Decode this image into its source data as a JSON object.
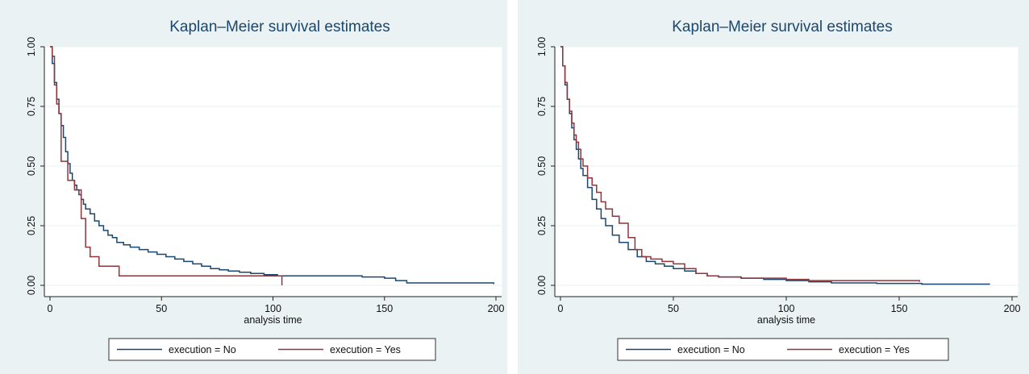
{
  "chart_data": [
    {
      "type": "line",
      "title": "Kaplan–Meier survival estimates",
      "xlabel": "analysis time",
      "ylabel": "",
      "xlim": [
        0,
        200
      ],
      "ylim": [
        0,
        1
      ],
      "xticks": [
        "0",
        "50",
        "100",
        "150",
        "200"
      ],
      "yticks": [
        "0.00",
        "0.25",
        "0.50",
        "0.75",
        "1.00"
      ],
      "grid": true,
      "legend_position": "bottom",
      "step": true,
      "series": [
        {
          "name": "execution = No",
          "color": "#1a476f",
          "x": [
            0,
            1,
            2,
            3,
            4,
            5,
            6,
            7,
            8,
            9,
            10,
            11,
            12,
            13,
            14,
            15,
            16,
            18,
            20,
            22,
            24,
            26,
            28,
            30,
            33,
            36,
            40,
            44,
            48,
            52,
            56,
            60,
            64,
            68,
            72,
            76,
            80,
            85,
            90,
            96,
            102,
            110,
            120,
            130,
            140,
            150,
            155,
            160,
            170,
            180,
            190,
            199
          ],
          "y": [
            1.0,
            0.93,
            0.85,
            0.78,
            0.72,
            0.67,
            0.62,
            0.56,
            0.51,
            0.47,
            0.44,
            0.42,
            0.4,
            0.38,
            0.36,
            0.34,
            0.32,
            0.3,
            0.27,
            0.25,
            0.23,
            0.21,
            0.2,
            0.18,
            0.17,
            0.16,
            0.15,
            0.14,
            0.13,
            0.12,
            0.11,
            0.1,
            0.09,
            0.08,
            0.07,
            0.065,
            0.06,
            0.055,
            0.05,
            0.045,
            0.04,
            0.04,
            0.04,
            0.04,
            0.035,
            0.03,
            0.02,
            0.01,
            0.01,
            0.01,
            0.01,
            0.005
          ]
        },
        {
          "name": "execution = Yes",
          "color": "#90353b",
          "x": [
            0,
            1,
            2,
            3,
            4,
            5,
            8,
            11,
            14,
            16,
            18,
            22,
            31,
            50,
            80,
            104
          ],
          "y": [
            1.0,
            0.96,
            0.84,
            0.76,
            0.72,
            0.52,
            0.44,
            0.4,
            0.28,
            0.16,
            0.12,
            0.08,
            0.04,
            0.04,
            0.04,
            0.0
          ]
        }
      ]
    },
    {
      "type": "line",
      "title": "Kaplan–Meier survival estimates",
      "xlabel": "analysis time",
      "ylabel": "",
      "xlim": [
        0,
        200
      ],
      "ylim": [
        0,
        1
      ],
      "xticks": [
        "0",
        "50",
        "100",
        "150",
        "200"
      ],
      "yticks": [
        "0.00",
        "0.25",
        "0.50",
        "0.75",
        "1.00"
      ],
      "grid": true,
      "legend_position": "bottom",
      "step": true,
      "series": [
        {
          "name": "execution = No",
          "color": "#1a476f",
          "x": [
            0,
            1,
            2,
            3,
            4,
            5,
            6,
            7,
            8,
            9,
            10,
            12,
            14,
            16,
            18,
            20,
            23,
            26,
            30,
            34,
            38,
            42,
            46,
            50,
            55,
            60,
            65,
            70,
            80,
            90,
            100,
            110,
            120,
            140,
            160,
            190
          ],
          "y": [
            1.0,
            0.92,
            0.84,
            0.78,
            0.72,
            0.66,
            0.61,
            0.57,
            0.53,
            0.49,
            0.46,
            0.41,
            0.36,
            0.32,
            0.28,
            0.25,
            0.21,
            0.18,
            0.15,
            0.12,
            0.1,
            0.09,
            0.08,
            0.07,
            0.06,
            0.05,
            0.04,
            0.035,
            0.03,
            0.025,
            0.02,
            0.015,
            0.01,
            0.008,
            0.005,
            0.003
          ]
        },
        {
          "name": "execution = Yes",
          "color": "#90353b",
          "x": [
            0,
            1,
            2,
            3,
            4,
            5,
            6,
            7,
            8,
            9,
            10,
            12,
            14,
            16,
            18,
            20,
            23,
            26,
            30,
            33,
            36,
            40,
            45,
            50,
            55,
            60,
            65,
            70,
            80,
            100,
            110,
            130,
            159
          ],
          "y": [
            1.0,
            0.92,
            0.85,
            0.78,
            0.73,
            0.68,
            0.63,
            0.6,
            0.57,
            0.53,
            0.5,
            0.45,
            0.42,
            0.39,
            0.35,
            0.32,
            0.29,
            0.26,
            0.2,
            0.15,
            0.12,
            0.11,
            0.1,
            0.09,
            0.07,
            0.05,
            0.04,
            0.035,
            0.03,
            0.025,
            0.02,
            0.02,
            0.015
          ]
        }
      ]
    }
  ]
}
